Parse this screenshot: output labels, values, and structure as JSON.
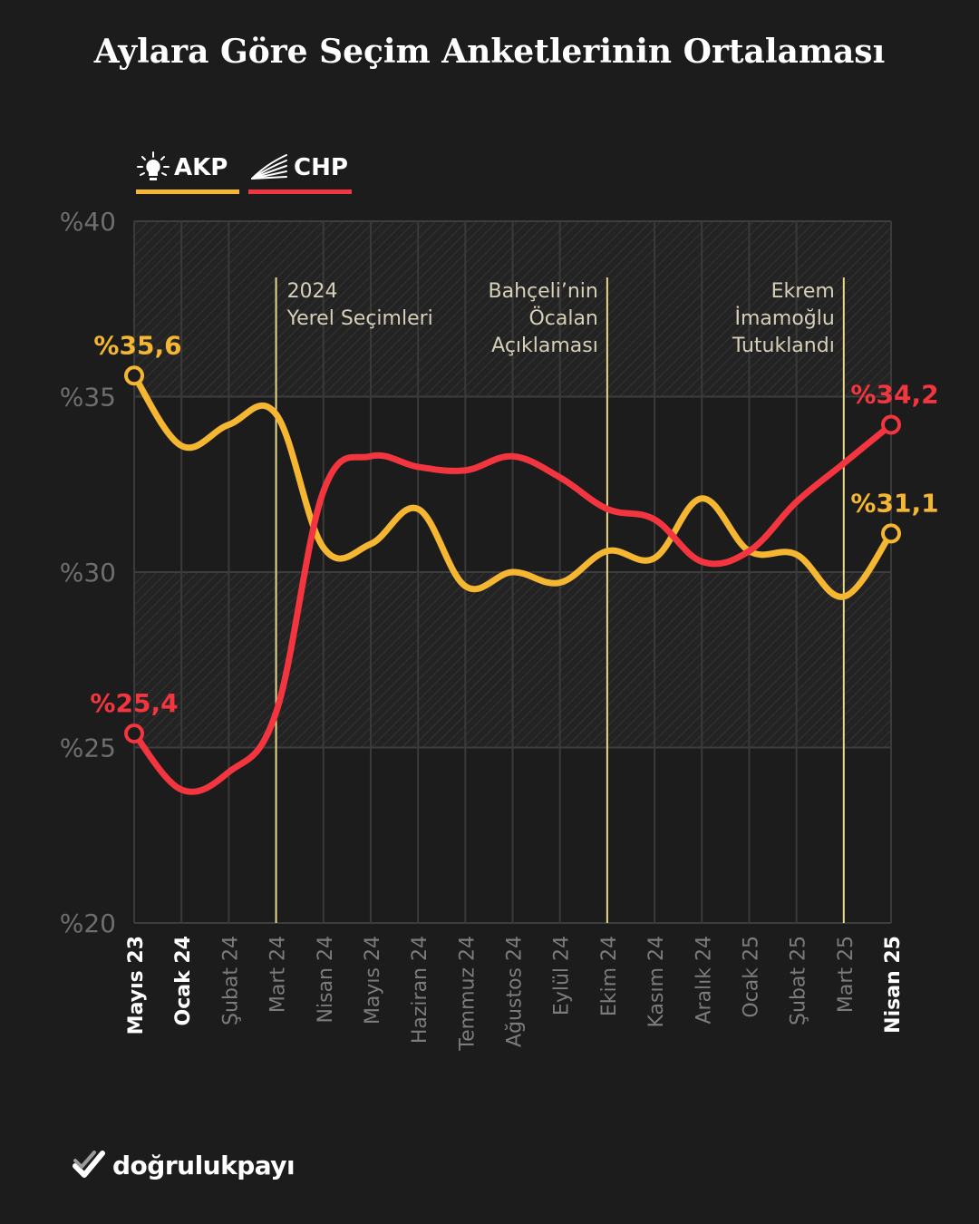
{
  "title": "Aylara Göre Seçim Anketlerinin Ortalaması",
  "legend": [
    {
      "name": "AKP",
      "color": "#f5b731",
      "icon": "lightbulb-icon"
    },
    {
      "name": "CHP",
      "color": "#f2353e",
      "icon": "rays-icon"
    }
  ],
  "colors": {
    "akp": "#f5b731",
    "chp": "#f2353e",
    "event_line": "#e9d98a",
    "background": "#1c1c1c"
  },
  "chart_data": {
    "type": "line",
    "title": "Aylara Göre Seçim Anketlerinin Ortalaması",
    "xlabel": "",
    "ylabel": "",
    "ylim": [
      20,
      40
    ],
    "y_ticks": [
      "%40",
      "%35",
      "%30",
      "%25",
      "%20"
    ],
    "y_tick_values": [
      40,
      35,
      30,
      25,
      20
    ],
    "categories": [
      "Mayıs 23",
      "Ocak 24",
      "Şubat 24",
      "Mart 24",
      "Nisan 24",
      "Mayıs 24",
      "Haziran 24",
      "Temmuz 24",
      "Ağustos 24",
      "Eylül 24",
      "Ekim 24",
      "Kasım 24",
      "Aralık 24",
      "Ocak 25",
      "Şubat 25",
      "Mart 25",
      "Nisan 25"
    ],
    "bold_categories": [
      "Mayıs 23",
      "Ocak 24",
      "Nisan 25"
    ],
    "series": [
      {
        "name": "AKP",
        "values": [
          35.6,
          33.6,
          34.2,
          34.5,
          30.7,
          30.8,
          31.8,
          29.6,
          30.0,
          29.7,
          30.6,
          30.4,
          32.1,
          30.6,
          30.5,
          29.3,
          31.1
        ]
      },
      {
        "name": "CHP",
        "values": [
          25.4,
          23.8,
          24.3,
          26.0,
          32.3,
          33.3,
          33.0,
          32.9,
          33.3,
          32.7,
          31.8,
          31.5,
          30.3,
          30.6,
          32.0,
          33.1,
          34.2
        ]
      }
    ],
    "endpoint_labels": {
      "AKP": {
        "start": "%35,6",
        "end": "%31,1"
      },
      "CHP": {
        "start": "%25,4",
        "end": "%34,2"
      }
    },
    "events": [
      {
        "category": "Mart 24",
        "label": [
          "2024",
          "Yerel Seçimleri"
        ],
        "align": "right-of-line"
      },
      {
        "category": "Ekim 24",
        "label": [
          "Bahçeli’nin",
          "Öcalan",
          "Açıklaması"
        ],
        "align": "left-of-line"
      },
      {
        "category": "Mart 25",
        "label": [
          "Ekrem",
          "İmamoğlu",
          "Tutuklandı"
        ],
        "align": "left-of-line"
      }
    ],
    "hatched_bands": [
      [
        35,
        40
      ],
      [
        25,
        30
      ]
    ],
    "grid": true
  },
  "footer": {
    "brand": "doğrulukpayı"
  }
}
